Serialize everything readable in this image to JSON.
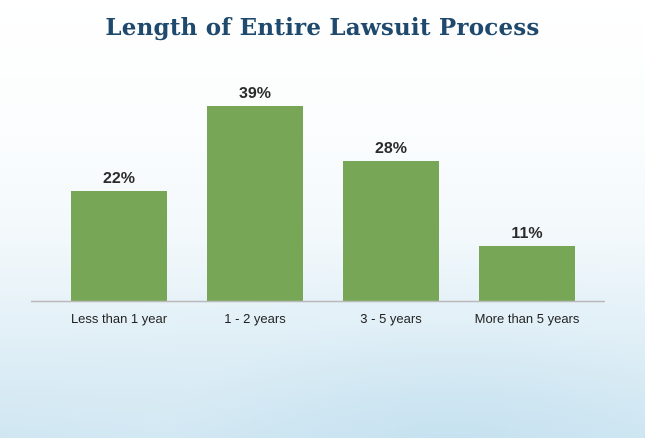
{
  "chart_data": {
    "type": "bar",
    "title": "Length of Entire Lawsuit Process",
    "xlabel": "",
    "ylabel": "",
    "categories": [
      "Less than 1 year",
      "1 - 2 years",
      "3 - 5 years",
      "More than 5 years"
    ],
    "values": [
      22,
      39,
      28,
      11
    ],
    "data_labels": [
      "22%",
      "39%",
      "28%",
      "11%"
    ],
    "unit": "%",
    "ylim": [
      0,
      39
    ],
    "grid": false,
    "legend": "none"
  },
  "colors": {
    "bar": "#78a657",
    "axis": "#b9b9b9",
    "title": "#1f4a6e"
  }
}
